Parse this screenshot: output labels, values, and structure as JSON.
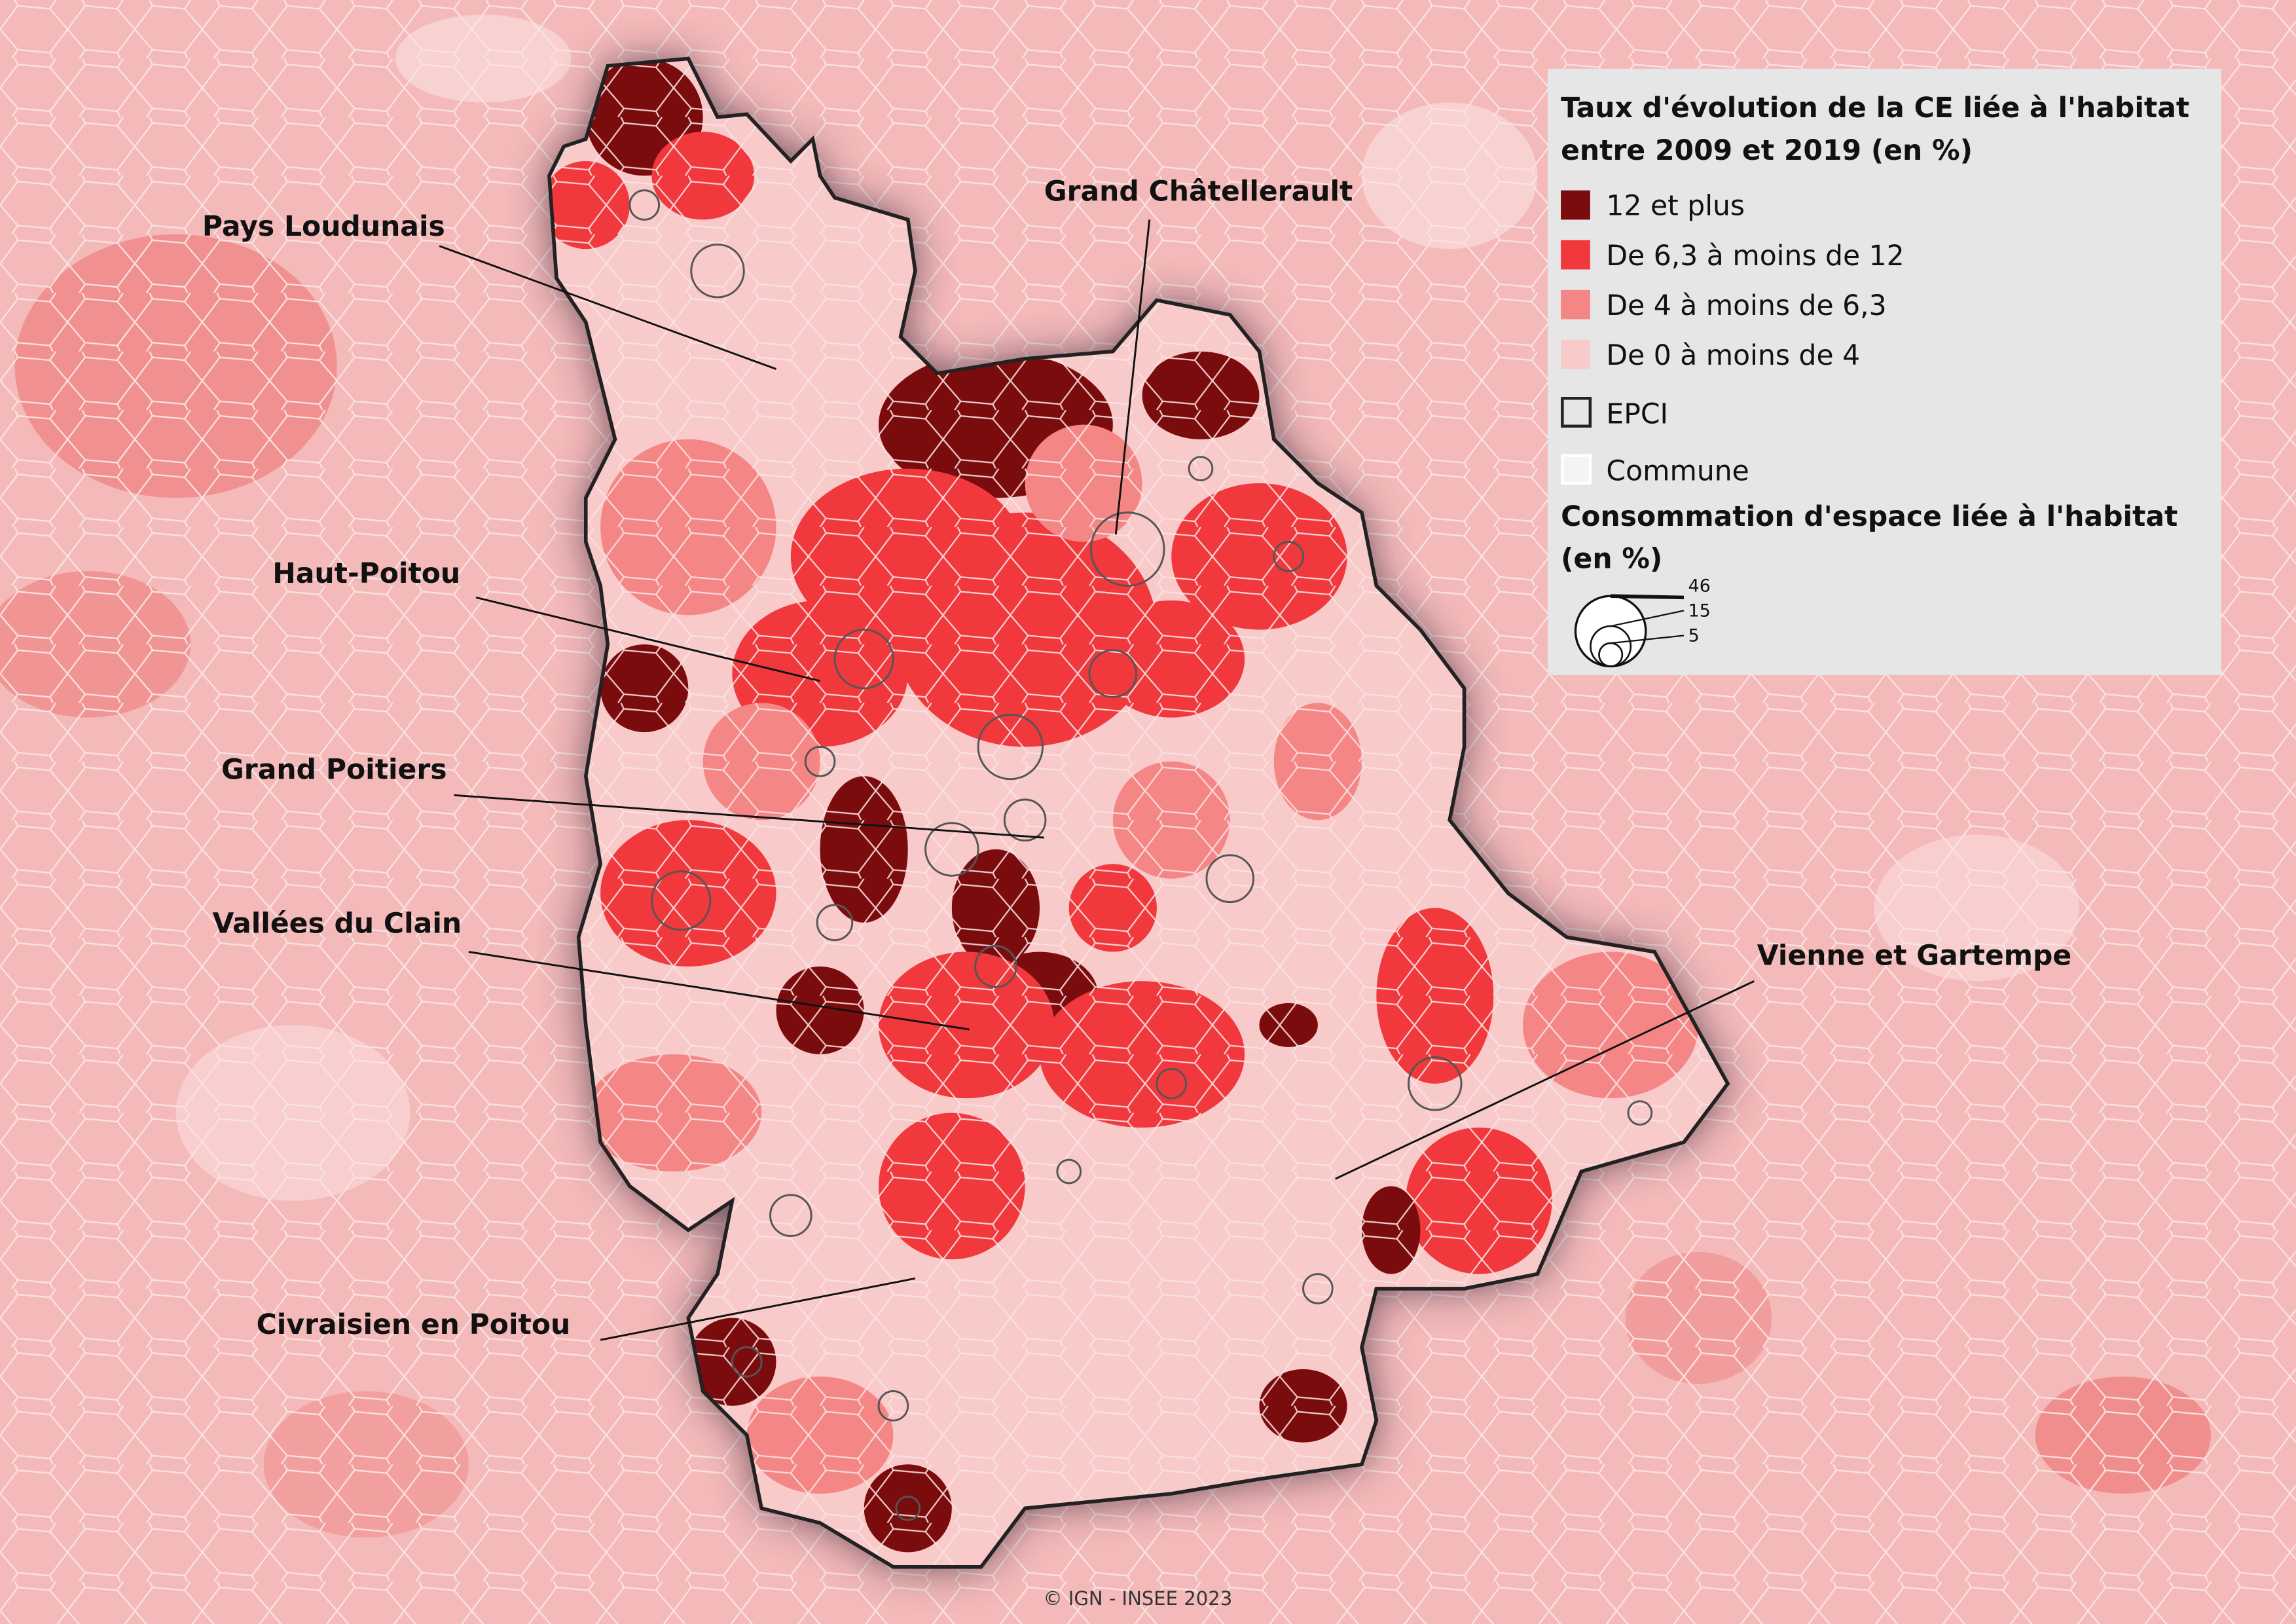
{
  "legend": {
    "title_lines": [
      "Taux d'évolution de la CE liée à l'habitat",
      "entre 2009 et 2019 (en %)"
    ],
    "classes": [
      {
        "label": "12 et plus",
        "color": "#7b0c0e"
      },
      {
        "label": "De 6,3 à moins de 12",
        "color": "#f0383d"
      },
      {
        "label": "De 4 à moins de 6,3",
        "color": "#f48686"
      },
      {
        "label": "De 0 à moins de 4",
        "color": "#f8caca"
      }
    ],
    "boundaries": [
      "EPCI",
      "Commune"
    ],
    "size_title_lines": [
      "Consommation d'espace liée à l'habitat",
      "(en %)"
    ],
    "size_values": [
      46,
      15,
      5
    ]
  },
  "epci_labels": [
    "Pays Loudunais",
    "Grand Châtellerault",
    "Haut-Poitou",
    "Grand Poitiers",
    "Vallées du Clain",
    "Vienne et Gartempe",
    "Civraisien en Poitou"
  ],
  "credit": "© IGN - INSEE 2023"
}
